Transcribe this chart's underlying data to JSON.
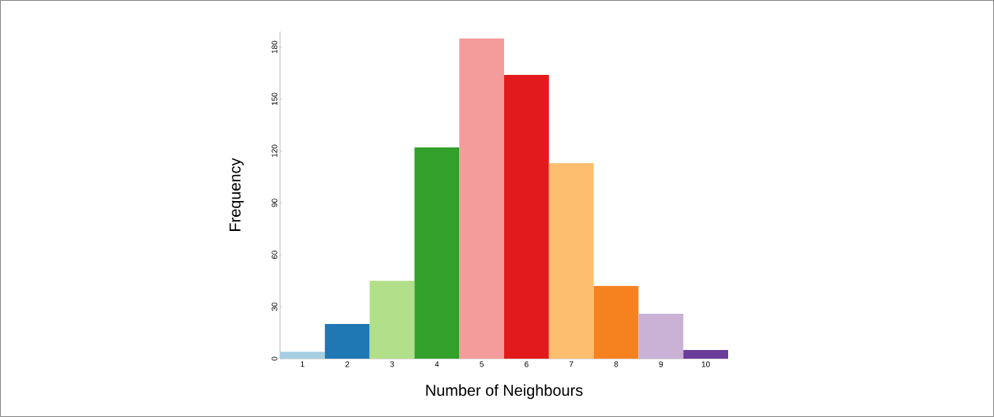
{
  "chart_data": {
    "type": "bar",
    "categories": [
      "1",
      "2",
      "3",
      "4",
      "5",
      "6",
      "7",
      "8",
      "9",
      "10"
    ],
    "values": [
      4,
      20,
      45,
      122,
      185,
      164,
      113,
      42,
      26,
      5
    ],
    "colors": [
      "#a6cee3",
      "#1f78b4",
      "#b2df8a",
      "#33a02c",
      "#f49c9c",
      "#e31a1c",
      "#fdbf6f",
      "#f5821f",
      "#cab2d6",
      "#6a3d9a"
    ],
    "xlabel": "Number of Neighbours",
    "ylabel": "Frequency",
    "ylim": [
      0,
      189
    ],
    "yticks": [
      0,
      30,
      60,
      90,
      120,
      150,
      180
    ]
  }
}
